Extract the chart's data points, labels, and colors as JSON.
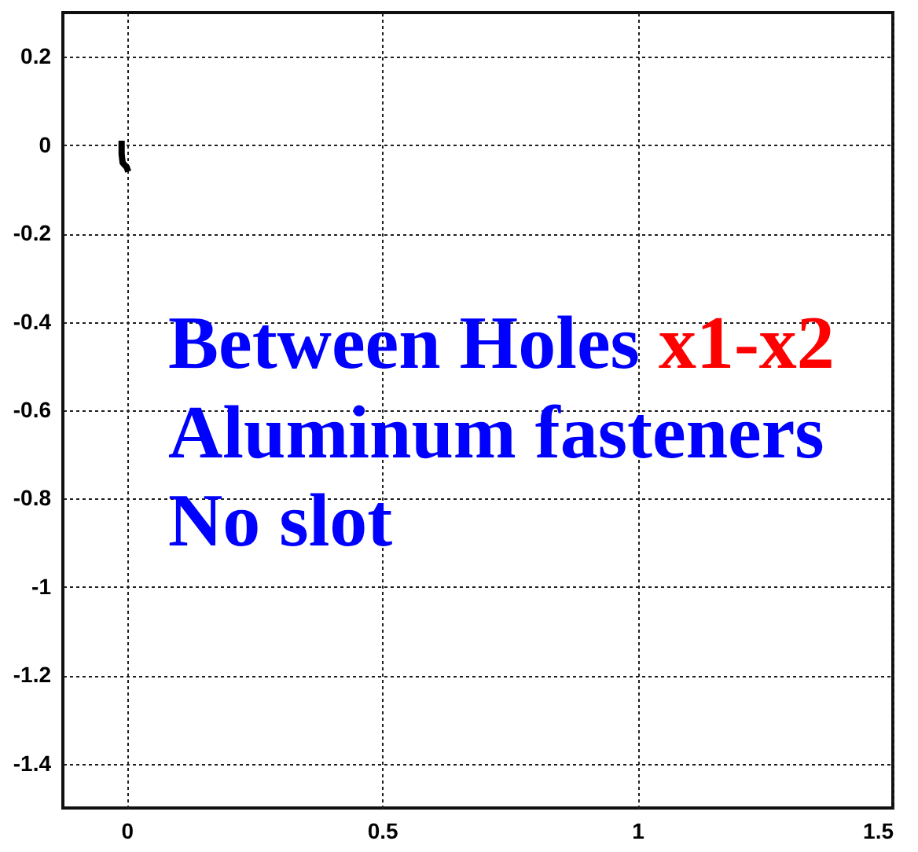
{
  "chart_data": {
    "type": "line",
    "series": [
      {
        "color": "#000000",
        "x": [
          -0.01,
          -0.01,
          -0.008,
          0.0,
          0.003
        ],
        "values": [
          0.01,
          -0.02,
          -0.04,
          -0.05,
          -0.06
        ]
      }
    ],
    "xlim": [
      -0.125,
      1.5
    ],
    "xticks": [
      0,
      0.5,
      1,
      1.5
    ],
    "ylim": [
      -1.5,
      0.3
    ],
    "yticks": [
      0.2,
      0,
      -0.2,
      -0.4,
      -0.6,
      -0.8,
      -1,
      -1.2,
      -1.4
    ],
    "grid": true,
    "annotations": [
      "Between Holes x1-x2",
      "Aluminum fasteners",
      "No slot"
    ]
  }
}
